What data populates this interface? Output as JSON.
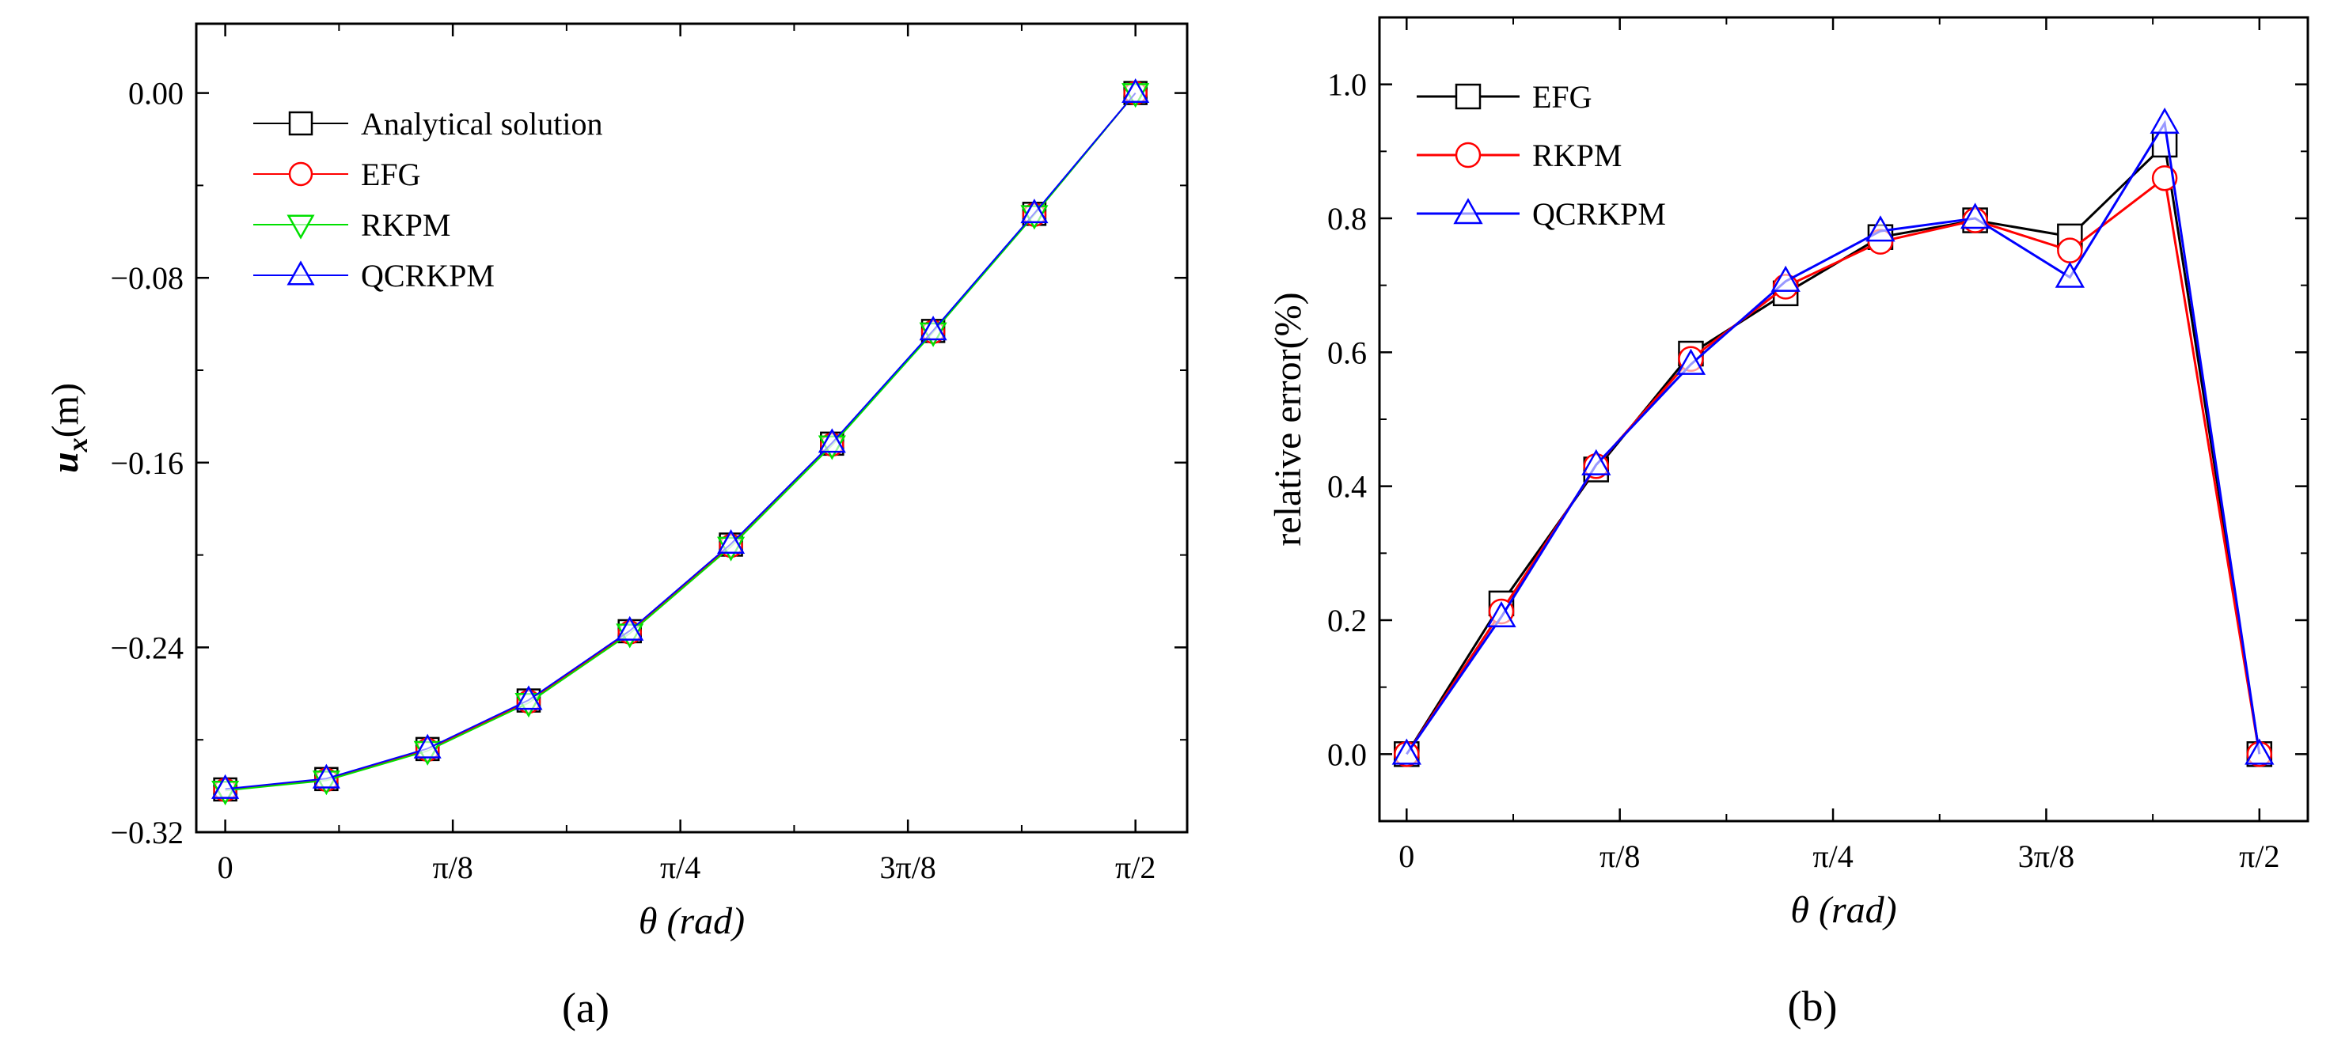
{
  "chart_data": [
    {
      "panel_label": "(a)",
      "type": "line",
      "xlabel": "θ (rad)",
      "ylabel": "u_x(m)",
      "ylabel_parts": {
        "italic": "u",
        "subscript": "x",
        "rest": "(m)"
      },
      "xlim": [
        -0.05,
        1.66
      ],
      "ylim": [
        -0.32,
        0.03
      ],
      "x_ticks": [
        0,
        0.3927,
        0.7854,
        1.1781,
        1.5708
      ],
      "x_tick_labels": [
        "0",
        "π/8",
        "π/4",
        "3π/8",
        "π/2"
      ],
      "y_ticks": [
        0.0,
        -0.08,
        -0.16,
        -0.24,
        -0.32
      ],
      "y_tick_labels": [
        "0.00",
        "−0.08",
        "−0.16",
        "−0.24",
        "−0.32"
      ],
      "legend_position": "top-left",
      "x": [
        0,
        0.1745,
        0.3491,
        0.5236,
        0.6981,
        0.8727,
        1.0472,
        1.2217,
        1.3963,
        1.5708
      ],
      "series": [
        {
          "name": "Analytical solution",
          "color": "#000000",
          "marker": "square",
          "values": [
            -0.3015,
            -0.297,
            -0.284,
            -0.263,
            -0.233,
            -0.1955,
            -0.1518,
            -0.103,
            -0.0523,
            0.0
          ]
        },
        {
          "name": "EFG",
          "color": "#ff0000",
          "marker": "circle",
          "values": [
            -0.3017,
            -0.2973,
            -0.2843,
            -0.2635,
            -0.2335,
            -0.196,
            -0.1522,
            -0.1034,
            -0.0527,
            0.0
          ]
        },
        {
          "name": "RKPM",
          "color": "#00e000",
          "marker": "triangle-down",
          "values": [
            -0.302,
            -0.2976,
            -0.2848,
            -0.264,
            -0.234,
            -0.1964,
            -0.1525,
            -0.1036,
            -0.0528,
            0.0
          ]
        },
        {
          "name": "QCRKPM",
          "color": "#0000ff",
          "marker": "triangle-up",
          "values": [
            -0.3013,
            -0.2968,
            -0.2838,
            -0.2628,
            -0.2328,
            -0.1952,
            -0.1515,
            -0.1028,
            -0.0521,
            0.0
          ]
        }
      ]
    },
    {
      "panel_label": "(b)",
      "type": "line",
      "xlabel": "θ (rad)",
      "ylabel": "relative error(%)",
      "xlim": [
        -0.05,
        1.66
      ],
      "ylim": [
        -0.1,
        1.1
      ],
      "x_ticks": [
        0,
        0.3927,
        0.7854,
        1.1781,
        1.5708
      ],
      "x_tick_labels": [
        "0",
        "π/8",
        "π/4",
        "3π/8",
        "π/2"
      ],
      "y_ticks": [
        0.0,
        0.2,
        0.4,
        0.6,
        0.8,
        1.0
      ],
      "y_tick_labels": [
        "0.0",
        "0.2",
        "0.4",
        "0.6",
        "0.8",
        "1.0"
      ],
      "legend_position": "top-left",
      "x": [
        0,
        0.1745,
        0.3491,
        0.5236,
        0.6981,
        0.8727,
        1.0472,
        1.2217,
        1.3963,
        1.5708
      ],
      "series": [
        {
          "name": "EFG",
          "color": "#000000",
          "marker": "square",
          "values": [
            0.0,
            0.225,
            0.425,
            0.598,
            0.688,
            0.772,
            0.797,
            0.773,
            0.91,
            0.0
          ]
        },
        {
          "name": "RKPM",
          "color": "#ff0000",
          "marker": "circle",
          "values": [
            0.0,
            0.213,
            0.43,
            0.59,
            0.698,
            0.765,
            0.797,
            0.752,
            0.86,
            0.0
          ]
        },
        {
          "name": "QCRKPM",
          "color": "#0000ff",
          "marker": "triangle-up",
          "values": [
            0.0,
            0.205,
            0.432,
            0.582,
            0.706,
            0.781,
            0.8,
            0.712,
            0.942,
            0.0
          ]
        }
      ]
    }
  ]
}
